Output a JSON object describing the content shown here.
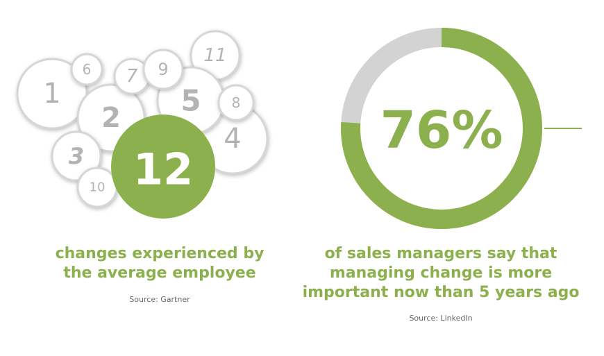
{
  "bubbles": [
    "1",
    "6",
    "7",
    "9",
    "11",
    "2",
    "5",
    "8",
    "4",
    "3",
    "10"
  ],
  "stat1": {
    "value": "12",
    "caption": [
      "changes experienced by",
      "the average employee"
    ],
    "source": "Source: Gartner"
  },
  "stat2": {
    "value": 76,
    "label": "76%",
    "caption": [
      "of sales managers say that",
      "managing change is more",
      "important now than 5 years ago"
    ],
    "source": "Source: LinkedIn"
  }
}
